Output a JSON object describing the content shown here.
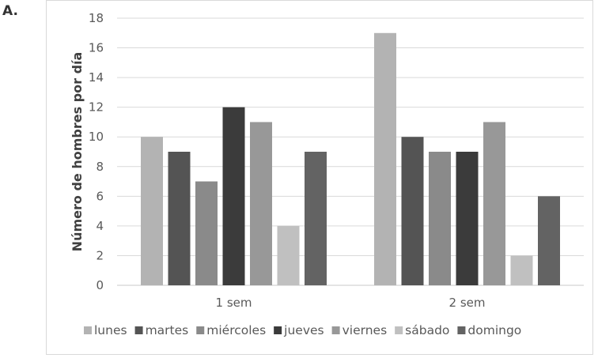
{
  "panel_label": "A.",
  "chart_data": {
    "type": "bar",
    "categories": [
      "1 sem",
      "2 sem"
    ],
    "series": [
      {
        "name": "lunes",
        "values": [
          10,
          17
        ],
        "color": "#b3b3b3"
      },
      {
        "name": "martes",
        "values": [
          9,
          10
        ],
        "color": "#545454"
      },
      {
        "name": "miércoles",
        "values": [
          7,
          9
        ],
        "color": "#8a8a8a"
      },
      {
        "name": "jueves",
        "values": [
          12,
          9
        ],
        "color": "#3b3b3b"
      },
      {
        "name": "viernes",
        "values": [
          11,
          11
        ],
        "color": "#989898"
      },
      {
        "name": "sábado",
        "values": [
          4,
          2
        ],
        "color": "#c0c0c0"
      },
      {
        "name": "domingo",
        "values": [
          9,
          6
        ],
        "color": "#636363"
      }
    ],
    "ylabel": "Número de hombres por día",
    "xlabel": "",
    "ylim": [
      0,
      18
    ],
    "yticks": [
      0,
      2,
      4,
      6,
      8,
      10,
      12,
      14,
      16,
      18
    ],
    "grid": true,
    "legend_position": "bottom"
  }
}
